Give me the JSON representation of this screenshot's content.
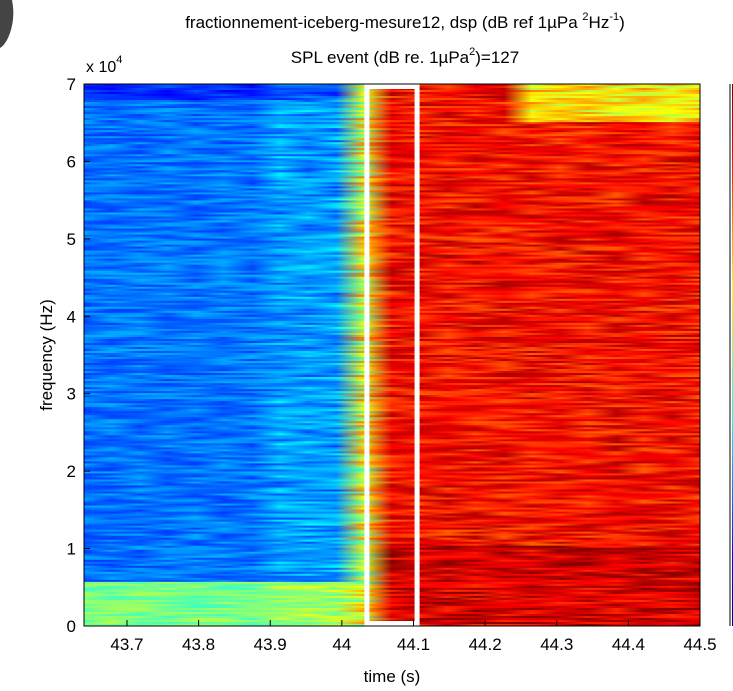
{
  "chart_data": {
    "type": "heatmap",
    "title_line1": "fractionnement-iceberg-mesure12, dsp (dB ref 1µPa ",
    "title_line1_sup": "2",
    "title_line1_mid": "Hz",
    "title_line1_sup2": "-1",
    "title_line1_end": ")",
    "title_line2": "SPL event (dB re. 1µPa",
    "title_line2_sup": "2",
    "title_line2_end": ")=127",
    "xlabel": "time (s)",
    "ylabel": "frequency (Hz)",
    "y_multiplier_base": "x 10",
    "y_multiplier_exp": "4",
    "xlim": [
      43.64,
      44.5
    ],
    "ylim": [
      0,
      70000
    ],
    "x_ticks": [
      43.7,
      43.8,
      43.9,
      44.0,
      44.1,
      44.2,
      44.3,
      44.4,
      44.5
    ],
    "x_tick_labels": [
      "43.7",
      "43.8",
      "43.9",
      "44",
      "44.1",
      "44.2",
      "44.3",
      "44.4",
      "44.5"
    ],
    "y_ticks": [
      0,
      10000,
      20000,
      30000,
      40000,
      50000,
      60000,
      70000
    ],
    "y_tick_labels": [
      "0",
      "1",
      "2",
      "3",
      "4",
      "5",
      "6",
      "7"
    ],
    "colormap": "jet",
    "event_onset_s": 44.02,
    "highlight_box": {
      "x_start": 44.035,
      "x_end": 44.105,
      "y_start": 0,
      "y_end": 70000,
      "color": "#ffffff"
    },
    "colors": {
      "low": "#00008f",
      "mid": "#7fff7f",
      "high": "#7f0000"
    }
  }
}
